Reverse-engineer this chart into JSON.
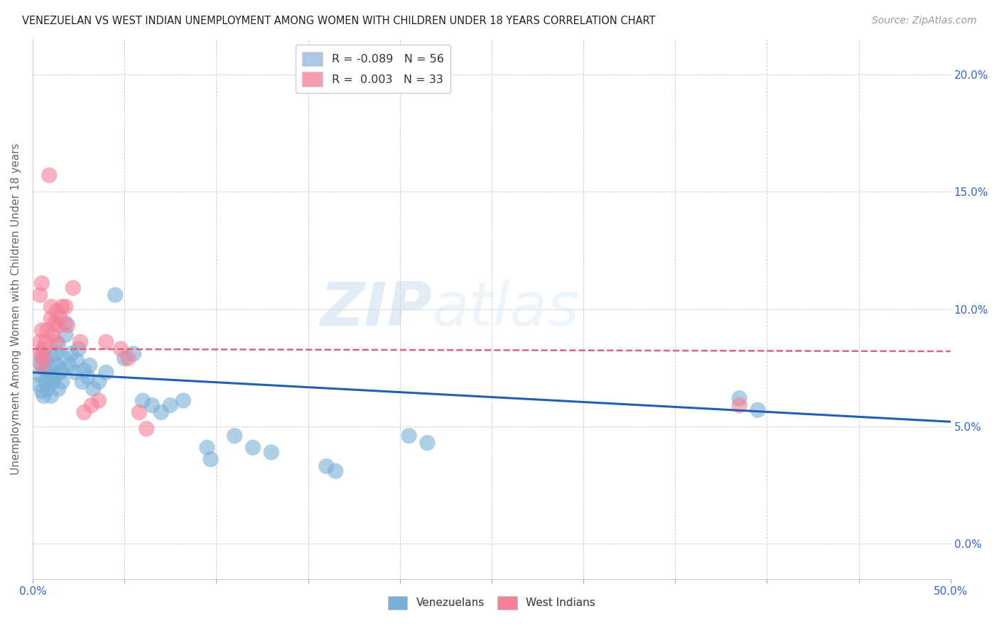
{
  "title": "VENEZUELAN VS WEST INDIAN UNEMPLOYMENT AMONG WOMEN WITH CHILDREN UNDER 18 YEARS CORRELATION CHART",
  "source": "Source: ZipAtlas.com",
  "ylabel": "Unemployment Among Women with Children Under 18 years",
  "xlim": [
    0.0,
    0.5
  ],
  "ylim": [
    -0.015,
    0.215
  ],
  "xticks": [
    0.0,
    0.05,
    0.1,
    0.15,
    0.2,
    0.25,
    0.3,
    0.35,
    0.4,
    0.45,
    0.5
  ],
  "xtick_label_positions": [
    0.0,
    0.5
  ],
  "xtick_labels_map": {
    "0.0": "0.0%",
    "0.5": "50.0%"
  },
  "yticks": [
    0.0,
    0.05,
    0.1,
    0.15,
    0.2
  ],
  "ytick_labels": [
    "0.0%",
    "5.0%",
    "10.0%",
    "15.0%",
    "20.0%"
  ],
  "legend_entries": [
    {
      "label_r": "R = ",
      "label_rv": "-0.089",
      "label_n": "   N = ",
      "label_nv": "56",
      "color": "#aec6e8"
    },
    {
      "label_r": "R =  ",
      "label_rv": "0.003",
      "label_n": "   N = ",
      "label_nv": "33",
      "color": "#f4a0b0"
    }
  ],
  "legend_bottom": [
    "Venezuelans",
    "West Indians"
  ],
  "venezuelan_color": "#7ab0d8",
  "west_indian_color": "#f48098",
  "trend_venezuelan_color": "#2060b0",
  "trend_west_indian_color": "#e06080",
  "watermark_zip": "ZIP",
  "watermark_atlas": "atlas",
  "venezuelan_points": [
    [
      0.003,
      0.068
    ],
    [
      0.004,
      0.072
    ],
    [
      0.004,
      0.077
    ],
    [
      0.005,
      0.08
    ],
    [
      0.005,
      0.065
    ],
    [
      0.006,
      0.063
    ],
    [
      0.007,
      0.069
    ],
    [
      0.007,
      0.074
    ],
    [
      0.008,
      0.066
    ],
    [
      0.009,
      0.071
    ],
    [
      0.009,
      0.076
    ],
    [
      0.01,
      0.08
    ],
    [
      0.01,
      0.063
    ],
    [
      0.011,
      0.069
    ],
    [
      0.012,
      0.071
    ],
    [
      0.013,
      0.076
    ],
    [
      0.013,
      0.081
    ],
    [
      0.014,
      0.085
    ],
    [
      0.014,
      0.066
    ],
    [
      0.015,
      0.073
    ],
    [
      0.016,
      0.069
    ],
    [
      0.016,
      0.074
    ],
    [
      0.017,
      0.079
    ],
    [
      0.018,
      0.089
    ],
    [
      0.018,
      0.094
    ],
    [
      0.02,
      0.076
    ],
    [
      0.021,
      0.081
    ],
    [
      0.023,
      0.073
    ],
    [
      0.024,
      0.078
    ],
    [
      0.025,
      0.083
    ],
    [
      0.027,
      0.069
    ],
    [
      0.028,
      0.074
    ],
    [
      0.03,
      0.071
    ],
    [
      0.031,
      0.076
    ],
    [
      0.033,
      0.066
    ],
    [
      0.036,
      0.069
    ],
    [
      0.04,
      0.073
    ],
    [
      0.045,
      0.106
    ],
    [
      0.05,
      0.079
    ],
    [
      0.055,
      0.081
    ],
    [
      0.06,
      0.061
    ],
    [
      0.065,
      0.059
    ],
    [
      0.07,
      0.056
    ],
    [
      0.075,
      0.059
    ],
    [
      0.082,
      0.061
    ],
    [
      0.095,
      0.041
    ],
    [
      0.097,
      0.036
    ],
    [
      0.11,
      0.046
    ],
    [
      0.12,
      0.041
    ],
    [
      0.13,
      0.039
    ],
    [
      0.16,
      0.033
    ],
    [
      0.165,
      0.031
    ],
    [
      0.205,
      0.046
    ],
    [
      0.215,
      0.043
    ],
    [
      0.385,
      0.062
    ],
    [
      0.395,
      0.057
    ]
  ],
  "west_indian_points": [
    [
      0.004,
      0.081
    ],
    [
      0.004,
      0.086
    ],
    [
      0.005,
      0.091
    ],
    [
      0.005,
      0.076
    ],
    [
      0.006,
      0.083
    ],
    [
      0.006,
      0.079
    ],
    [
      0.007,
      0.086
    ],
    [
      0.008,
      0.091
    ],
    [
      0.009,
      0.157
    ],
    [
      0.01,
      0.096
    ],
    [
      0.01,
      0.101
    ],
    [
      0.011,
      0.089
    ],
    [
      0.012,
      0.094
    ],
    [
      0.013,
      0.099
    ],
    [
      0.013,
      0.086
    ],
    [
      0.014,
      0.093
    ],
    [
      0.015,
      0.096
    ],
    [
      0.016,
      0.101
    ],
    [
      0.018,
      0.101
    ],
    [
      0.019,
      0.093
    ],
    [
      0.022,
      0.109
    ],
    [
      0.026,
      0.086
    ],
    [
      0.028,
      0.056
    ],
    [
      0.032,
      0.059
    ],
    [
      0.036,
      0.061
    ],
    [
      0.04,
      0.086
    ],
    [
      0.048,
      0.083
    ],
    [
      0.052,
      0.079
    ],
    [
      0.058,
      0.056
    ],
    [
      0.062,
      0.049
    ],
    [
      0.004,
      0.106
    ],
    [
      0.005,
      0.111
    ],
    [
      0.385,
      0.059
    ]
  ],
  "ven_trend": [
    0.0,
    0.5,
    0.073,
    0.052
  ],
  "wi_trend": [
    0.0,
    0.5,
    0.083,
    0.082
  ]
}
